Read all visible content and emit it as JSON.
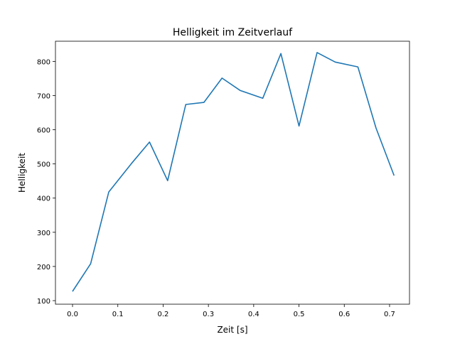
{
  "chart_data": {
    "type": "line",
    "title": "Helligkeit im Zeitverlauf",
    "xlabel": "Zeit [s]",
    "ylabel": "Helligkeit",
    "xlim": [
      -0.0377,
      0.744
    ],
    "ylim": [
      89.6,
      859
    ],
    "xticks": [
      0.0,
      0.1,
      0.2,
      0.3,
      0.4,
      0.5,
      0.6,
      0.7
    ],
    "xtick_labels": [
      "0.0",
      "0.1",
      "0.2",
      "0.3",
      "0.4",
      "0.5",
      "0.6",
      "0.7"
    ],
    "yticks": [
      100,
      200,
      300,
      400,
      500,
      600,
      700,
      800
    ],
    "ytick_labels": [
      "100",
      "200",
      "300",
      "400",
      "500",
      "600",
      "700",
      "800"
    ],
    "grid": false,
    "series": [
      {
        "name": "Helligkeit",
        "color": "#1f77b4",
        "x": [
          0.0,
          0.04,
          0.08,
          0.13,
          0.17,
          0.21,
          0.25,
          0.29,
          0.33,
          0.37,
          0.42,
          0.46,
          0.5,
          0.54,
          0.58,
          0.63,
          0.67,
          0.71
        ],
        "y": [
          127,
          208,
          418,
          501,
          564,
          451,
          674,
          680,
          751,
          715,
          692,
          823,
          611,
          826,
          798,
          784,
          605,
          466
        ]
      }
    ]
  }
}
